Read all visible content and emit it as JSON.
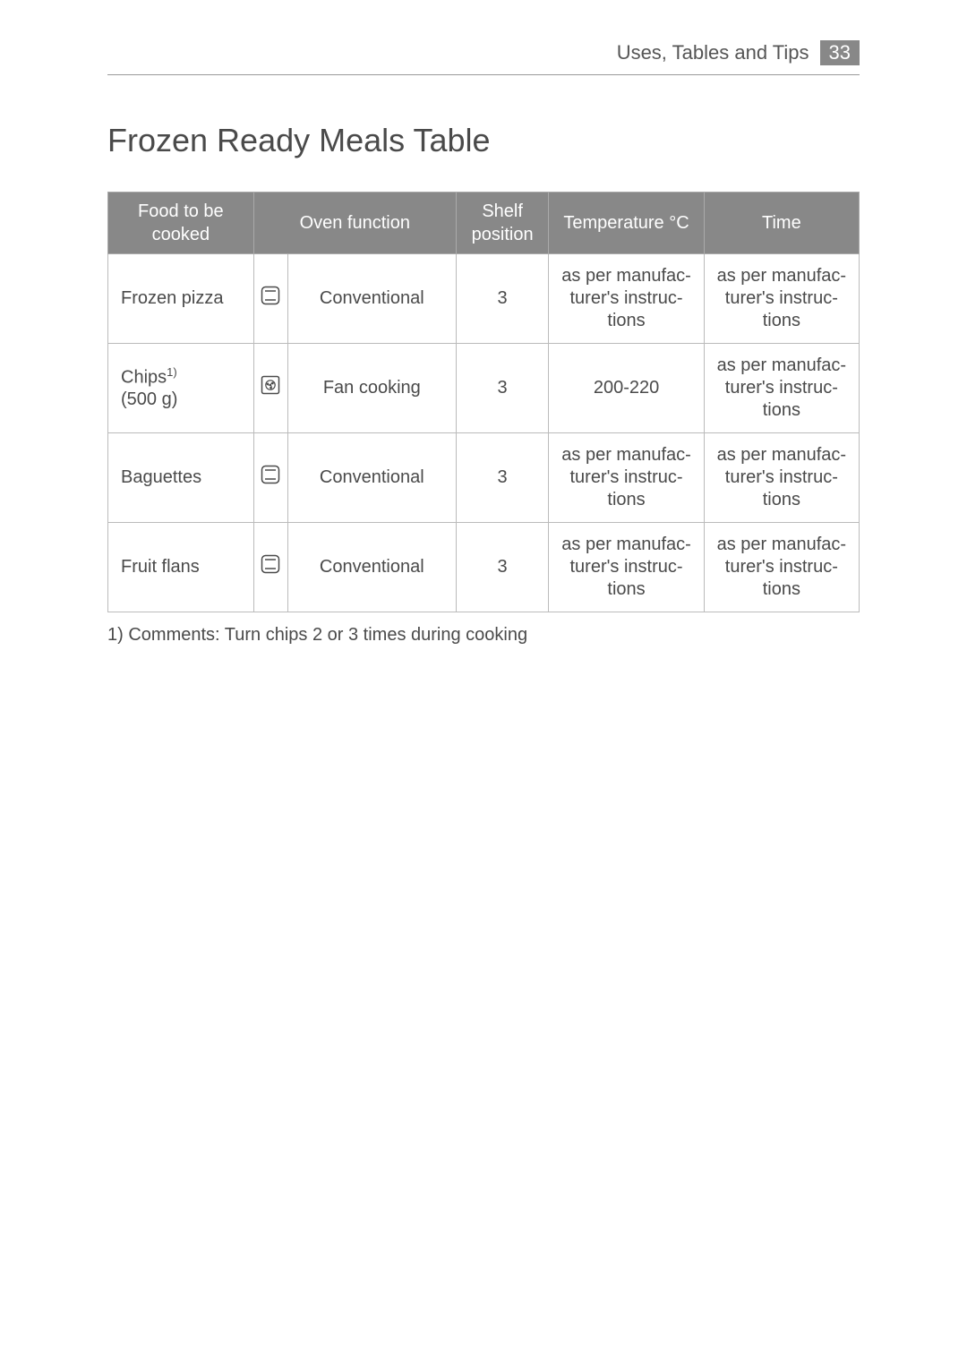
{
  "header": {
    "section_title": "Uses, Tables and Tips",
    "page_number": "33"
  },
  "title": "Frozen Ready Meals Table",
  "table": {
    "columns": [
      {
        "label": "Food to be cooked",
        "class": "col-food"
      },
      {
        "label": "Oven function",
        "class": "col-func-combined"
      },
      {
        "label": "Shelf position",
        "class": "col-shelf"
      },
      {
        "label": "Temperature °C",
        "class": "col-temp"
      },
      {
        "label": "Time",
        "class": "col-time"
      }
    ],
    "rows": [
      {
        "food": "Frozen pizza",
        "food_sup": "",
        "food_sub": "",
        "icon": "conventional",
        "func": "Conventional",
        "shelf": "3",
        "temp": "as per manufac-turer's instruc-tions",
        "time": "as per manufac-turer's instruc-tions"
      },
      {
        "food": "Chips",
        "food_sup": "1)",
        "food_sub": "(500 g)",
        "icon": "fan",
        "func": "Fan cooking",
        "shelf": "3",
        "temp": "200-220",
        "time": "as per manufac-turer's instruc-tions"
      },
      {
        "food": "Baguettes",
        "food_sup": "",
        "food_sub": "",
        "icon": "conventional",
        "func": "Conventional",
        "shelf": "3",
        "temp": "as per manufac-turer's instruc-tions",
        "time": "as per manufac-turer's instruc-tions"
      },
      {
        "food": "Fruit flans",
        "food_sup": "",
        "food_sub": "",
        "icon": "conventional",
        "func": "Conventional",
        "shelf": "3",
        "temp": "as per manufac-turer's instruc-tions",
        "time": "as per manufac-turer's instruc-tions"
      }
    ]
  },
  "footnote": "1) Comments: Turn chips 2 or 3 times during cooking",
  "style": {
    "header_bg": "#888888",
    "header_text": "#ffffff",
    "border_color": "#bbbbbb",
    "body_text": "#4a4a4a",
    "font_size_title": 36,
    "font_size_body": 20
  },
  "icons": {
    "conventional": "conventional-icon",
    "fan": "fan-icon"
  }
}
